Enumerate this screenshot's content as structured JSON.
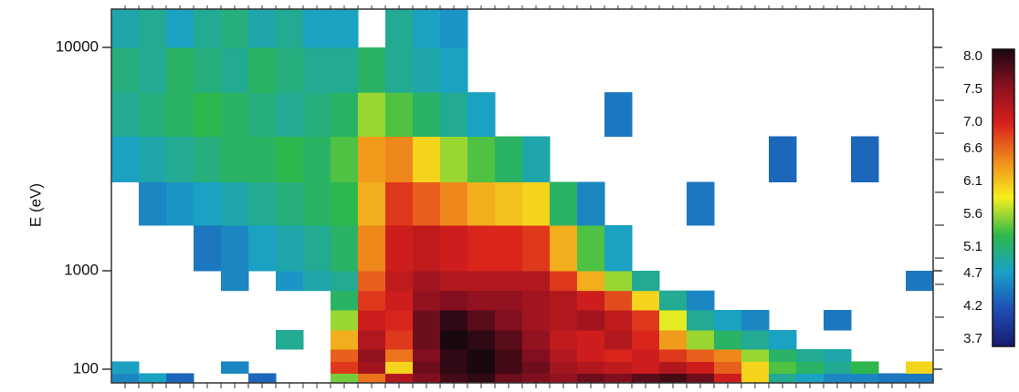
{
  "chart_data": {
    "type": "spectrogram",
    "y_label": "E (eV)",
    "log_y": true,
    "ylim": [
      70,
      15000
    ],
    "yticks": [
      100,
      1000,
      10000
    ],
    "y_bins": [
      70,
      90,
      120,
      160,
      250,
      400,
      630,
      1000,
      1600,
      2500,
      4000,
      6300,
      10000,
      15000
    ],
    "zlim": [
      3.7,
      8.0
    ],
    "zticks": [
      3.7,
      4.2,
      4.7,
      5.1,
      5.6,
      6.1,
      6.6,
      {
        "value": 7.0,
        "label": "7.0"
      },
      7.5,
      {
        "value": 8.0,
        "label": "8.0"
      }
    ],
    "colormap": [
      "#1a1a6e",
      "#1f4fb5",
      "#1aa0c8",
      "#2eb84a",
      "#f6f01e",
      "#f08a1c",
      "#d8201c",
      "#8a1020",
      "#1a0810"
    ],
    "values": [
      [
        4.6,
        4.8,
        4.4,
        null,
        null,
        4.4,
        null,
        null,
        5.5,
        6.5,
        7.2,
        7.5,
        7.8,
        7.9,
        7.6,
        7.5,
        7.4,
        7.6,
        7.5,
        7.7,
        7.8,
        7.6,
        7.0,
        6.0,
        5.0,
        4.8,
        4.6,
        4.6,
        4.5,
        4.5
      ],
      [
        4.8,
        null,
        null,
        null,
        4.6,
        null,
        null,
        null,
        6.8,
        7.3,
        6.0,
        7.6,
        7.9,
        8.0,
        7.8,
        7.6,
        7.3,
        7.2,
        7.1,
        7.0,
        7.2,
        7.0,
        6.6,
        6.0,
        5.4,
        5.2,
        5.0,
        5.3,
        null,
        6.0
      ],
      [
        null,
        null,
        null,
        null,
        null,
        null,
        null,
        null,
        6.6,
        7.4,
        6.5,
        7.5,
        7.9,
        8.0,
        7.8,
        7.5,
        7.2,
        7.0,
        6.9,
        7.0,
        6.8,
        6.6,
        6.4,
        5.6,
        5.2,
        5.0,
        4.9,
        null,
        null,
        null
      ],
      [
        null,
        null,
        null,
        null,
        null,
        null,
        5.0,
        null,
        6.2,
        7.2,
        6.8,
        7.6,
        8.0,
        7.9,
        7.7,
        7.4,
        7.1,
        7.0,
        7.2,
        6.9,
        6.3,
        5.6,
        5.2,
        5.0,
        4.8,
        null,
        null,
        null,
        null,
        null
      ],
      [
        null,
        null,
        null,
        null,
        null,
        null,
        null,
        null,
        5.6,
        7.0,
        6.9,
        7.6,
        7.9,
        7.7,
        7.5,
        7.3,
        7.2,
        7.3,
        7.1,
        6.8,
        5.8,
        5.0,
        4.8,
        4.6,
        null,
        null,
        4.5,
        null,
        null,
        null
      ],
      [
        null,
        null,
        null,
        null,
        null,
        null,
        null,
        null,
        5.2,
        6.8,
        7.0,
        7.4,
        7.5,
        7.4,
        7.4,
        7.3,
        7.2,
        7.0,
        6.7,
        6.0,
        5.0,
        4.6,
        null,
        null,
        null,
        null,
        null,
        null,
        null,
        null
      ],
      [
        null,
        null,
        null,
        null,
        4.6,
        null,
        4.7,
        4.9,
        5.0,
        6.6,
        7.1,
        7.3,
        7.2,
        7.2,
        7.2,
        7.2,
        6.8,
        6.2,
        5.6,
        5.0,
        null,
        null,
        null,
        null,
        null,
        null,
        null,
        null,
        null,
        4.5
      ],
      [
        null,
        null,
        null,
        4.5,
        4.6,
        4.8,
        4.9,
        5.0,
        5.2,
        6.4,
        7.0,
        7.1,
        7.0,
        6.9,
        6.9,
        6.8,
        6.2,
        5.4,
        4.8,
        null,
        null,
        null,
        null,
        null,
        null,
        null,
        null,
        null,
        null,
        null
      ],
      [
        null,
        4.6,
        4.7,
        4.8,
        4.9,
        5.0,
        5.1,
        5.2,
        5.3,
        6.2,
        6.8,
        6.6,
        6.4,
        6.2,
        6.1,
        6.0,
        5.2,
        4.6,
        null,
        null,
        null,
        4.5,
        null,
        null,
        null,
        null,
        null,
        null,
        null,
        null
      ],
      [
        4.8,
        4.9,
        5.0,
        5.1,
        5.2,
        5.2,
        5.3,
        5.2,
        5.4,
        6.3,
        6.4,
        6.0,
        5.6,
        5.4,
        5.2,
        4.9,
        null,
        null,
        null,
        null,
        null,
        null,
        null,
        null,
        4.4,
        null,
        null,
        4.4,
        null,
        null
      ],
      [
        5.0,
        5.1,
        5.2,
        5.3,
        5.2,
        5.1,
        5.0,
        5.1,
        5.2,
        5.6,
        5.4,
        5.2,
        5.0,
        4.8,
        null,
        null,
        null,
        null,
        4.5,
        null,
        null,
        null,
        null,
        null,
        null,
        null,
        null,
        null,
        null,
        null
      ],
      [
        5.1,
        5.0,
        5.2,
        5.1,
        5.0,
        5.2,
        5.1,
        5.0,
        5.0,
        5.2,
        5.0,
        4.9,
        4.8,
        null,
        null,
        null,
        null,
        null,
        null,
        null,
        null,
        null,
        null,
        null,
        null,
        null,
        null,
        null,
        null,
        null
      ],
      [
        4.9,
        5.0,
        4.8,
        5.0,
        5.1,
        4.9,
        5.0,
        4.8,
        4.8,
        null,
        5.0,
        4.8,
        4.7,
        null,
        null,
        null,
        null,
        null,
        null,
        null,
        null,
        null,
        null,
        null,
        null,
        null,
        null,
        null,
        null,
        null
      ]
    ]
  }
}
